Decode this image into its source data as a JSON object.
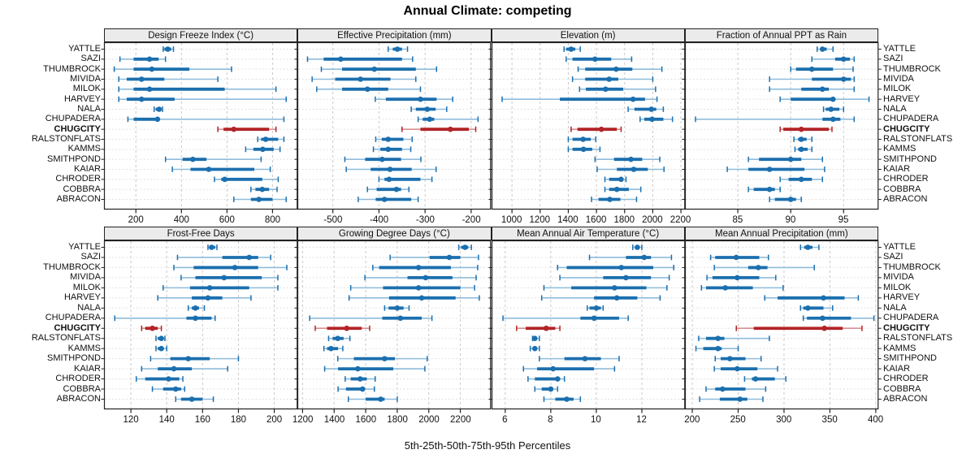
{
  "title": "Annual Climate: competing",
  "footer": "5th-25th-50th-75th-95th Percentiles",
  "highlight_site": "CHUGCITY",
  "sites": [
    "YATTLE",
    "SAZI",
    "THUMBROCK",
    "MIVIDA",
    "MILOK",
    "HARVEY",
    "NALA",
    "CHUPADERA",
    "CHUGCITY",
    "RALSTONFLATS",
    "KAMMS",
    "SMITHPOND",
    "KAIAR",
    "CHRODER",
    "COBBRA",
    "ABRACON"
  ],
  "colors": {
    "blue": "#1b6fae",
    "blue_light": "#8fbcdb",
    "red": "#b22427",
    "red_light": "#d98f91",
    "strip_bg": "#ebebeb",
    "panel_border": "#222222",
    "grid_dash": "#c9c9c9",
    "grid_dot": "#d9d9d9"
  },
  "chart_data": {
    "type": "dotplot",
    "description": "Trellis dot plot of five-number summaries (5th, 25th, 50th, 75th, 95th percentiles) of annual climate variables for 16 sites; CHUGCITY highlighted in red.",
    "percentiles": [
      "5th",
      "25th",
      "50th",
      "75th",
      "95th"
    ],
    "legend_position": "none",
    "grid": true,
    "panels": [
      {
        "title": "Design Freeze Index (°C)",
        "grid_row": 0,
        "grid_col": 0,
        "xlim": [
          60,
          910
        ],
        "ticks": [
          200,
          400,
          600,
          800
        ],
        "values": {
          "YATTLE": [
            320,
            325,
            340,
            355,
            365
          ],
          "SAZI": [
            130,
            190,
            260,
            300,
            330
          ],
          "THUMBROCK": [
            105,
            190,
            270,
            435,
            620
          ],
          "MIVIDA": [
            125,
            160,
            225,
            325,
            560
          ],
          "MILOK": [
            125,
            190,
            260,
            590,
            815
          ],
          "HARVEY": [
            125,
            160,
            225,
            370,
            860
          ],
          "NALA": [
            280,
            287,
            302,
            311,
            317
          ],
          "CHUPADERA": [
            165,
            190,
            295,
            300,
            850
          ],
          "CHUGCITY": [
            560,
            585,
            630,
            785,
            815
          ],
          "RALSTONFLATS": [
            735,
            750,
            770,
            825,
            850
          ],
          "KAMMS": [
            682,
            716,
            757,
            805,
            833
          ],
          "SMITHPOND": [
            330,
            405,
            450,
            510,
            750
          ],
          "KAIAR": [
            360,
            440,
            520,
            720,
            790
          ],
          "CHRODER": [
            545,
            575,
            590,
            755,
            825
          ],
          "COBBRA": [
            705,
            725,
            755,
            785,
            820
          ],
          "ABRACON": [
            630,
            705,
            740,
            800,
            860
          ]
        }
      },
      {
        "title": "Effective Precipitation (mm)",
        "grid_row": 0,
        "grid_col": 1,
        "xlim": [
          -577,
          -157
        ],
        "ticks": [
          -500,
          -400,
          -300,
          -200
        ],
        "values": {
          "YATTLE": [
            -380,
            -370,
            -360,
            -350,
            -338
          ],
          "SAZI": [
            -555,
            -520,
            -483,
            -350,
            -327
          ],
          "THUMBROCK": [
            -525,
            -480,
            -410,
            -320,
            -275
          ],
          "MIVIDA": [
            -545,
            -495,
            -440,
            -375,
            -320
          ],
          "MILOK": [
            -535,
            -480,
            -425,
            -380,
            -310
          ],
          "HARVEY": [
            -408,
            -385,
            -310,
            -275,
            -240
          ],
          "NALA": [
            -330,
            -320,
            -295,
            -277,
            -253
          ],
          "CHUPADERA": [
            -315,
            -305,
            -290,
            -280,
            -185
          ],
          "CHUGCITY": [
            -350,
            -310,
            -245,
            -205,
            -190
          ],
          "RALSTONFLATS": [
            -407,
            -394,
            -380,
            -347,
            -328
          ],
          "KAMMS": [
            -412,
            -397,
            -380,
            -350,
            -331
          ],
          "SMITHPOND": [
            -474,
            -430,
            -393,
            -352,
            -309
          ],
          "KAIAR": [
            -471,
            -418,
            -376,
            -329,
            -276
          ],
          "CHRODER": [
            -400,
            -388,
            -378,
            -310,
            -285
          ],
          "COBBRA": [
            -425,
            -405,
            -362,
            -352,
            -335
          ],
          "ABRACON": [
            -445,
            -407,
            -388,
            -330,
            -315
          ]
        }
      },
      {
        "title": "Elevation (m)",
        "grid_row": 0,
        "grid_col": 2,
        "xlim": [
          855,
          2230
        ],
        "ticks": [
          1000,
          1200,
          1400,
          1600,
          1800,
          2000,
          2200
        ],
        "values": {
          "YATTLE": [
            1370,
            1385,
            1420,
            1450,
            1485
          ],
          "SAZI": [
            1385,
            1430,
            1590,
            1705,
            1850
          ],
          "THUMBROCK": [
            1470,
            1520,
            1740,
            1855,
            2065
          ],
          "MIVIDA": [
            1430,
            1520,
            1690,
            1755,
            2000
          ],
          "MILOK": [
            1480,
            1525,
            1665,
            1790,
            2020
          ],
          "HARVEY": [
            930,
            1340,
            1860,
            1945,
            2030
          ],
          "NALA": [
            1825,
            1870,
            1990,
            2025,
            2075
          ],
          "CHUPADERA": [
            1910,
            1940,
            1995,
            2075,
            2140
          ],
          "CHUGCITY": [
            1420,
            1465,
            1635,
            1745,
            1775
          ],
          "RALSTONFLATS": [
            1400,
            1430,
            1505,
            1560,
            1595
          ],
          "KAMMS": [
            1400,
            1430,
            1508,
            1570,
            1625
          ],
          "SMITHPOND": [
            1590,
            1725,
            1845,
            1925,
            2050
          ],
          "KAIAR": [
            1605,
            1745,
            1865,
            1965,
            2080
          ],
          "CHRODER": [
            1660,
            1690,
            1775,
            1790,
            1810
          ],
          "COBBRA": [
            1660,
            1690,
            1745,
            1830,
            1915
          ],
          "ABRACON": [
            1565,
            1615,
            1695,
            1770,
            1885
          ]
        }
      },
      {
        "title": "Fraction of Annual PPT as Rain",
        "grid_row": 0,
        "grid_col": 3,
        "xlim": [
          80,
          98.3
        ],
        "ticks": [
          85,
          90,
          95
        ],
        "values": {
          "YATTLE": [
            92.5,
            92.8,
            93,
            93.4,
            94
          ],
          "SAZI": [
            92,
            94.2,
            95,
            95.6,
            96
          ],
          "THUMBROCK": [
            90,
            90.5,
            92,
            94,
            95.9
          ],
          "MIVIDA": [
            88,
            92,
            95,
            95.7,
            96
          ],
          "MILOK": [
            88,
            91,
            93,
            93.6,
            96
          ],
          "HARVEY": [
            89,
            90,
            94,
            94.2,
            97.4
          ],
          "NALA": [
            93.1,
            93.3,
            93.8,
            94.6,
            95
          ],
          "CHUPADERA": [
            81,
            93,
            94,
            94.7,
            96
          ],
          "CHUGCITY": [
            89,
            89.3,
            91,
            93.6,
            93.9
          ],
          "RALSTONFLATS": [
            90.3,
            90.7,
            91,
            91.5,
            92
          ],
          "KAMMS": [
            90.4,
            90.7,
            91,
            91.6,
            92
          ],
          "SMITHPOND": [
            86,
            87,
            90,
            91,
            93
          ],
          "KAIAR": [
            84,
            86,
            88,
            91.3,
            93.2
          ],
          "CHRODER": [
            89,
            89.8,
            91,
            92,
            93
          ],
          "COBBRA": [
            86,
            86.5,
            88,
            88.5,
            89
          ],
          "ABRACON": [
            88,
            88.5,
            90,
            90.5,
            91
          ]
        }
      },
      {
        "title": "Frost-Free Days",
        "grid_row": 1,
        "grid_col": 0,
        "xlim": [
          105,
          213
        ],
        "ticks": [
          120,
          140,
          160,
          180,
          200
        ],
        "values": {
          "YATTLE": [
            163,
            164,
            165,
            167,
            168
          ],
          "SAZI": [
            146,
            171,
            186,
            191,
            198
          ],
          "THUMBROCK": [
            144,
            155,
            178,
            191,
            207
          ],
          "MIVIDA": [
            148,
            156,
            172,
            193,
            202
          ],
          "MILOK": [
            138,
            153,
            164,
            186,
            202
          ],
          "HARVEY": [
            135,
            154,
            163,
            171,
            187
          ],
          "NALA": [
            152,
            154,
            156,
            158,
            161
          ],
          "CHUPADERA": [
            111,
            151,
            156,
            165,
            167
          ],
          "CHUGCITY": [
            126,
            128,
            132,
            135,
            137
          ],
          "RALSTONFLATS": [
            134,
            135,
            137,
            138,
            139
          ],
          "KAMMS": [
            134,
            135,
            137,
            138,
            140
          ],
          "SMITHPOND": [
            131,
            142,
            152,
            164,
            180
          ],
          "KAIAR": [
            126,
            135,
            144,
            154,
            174
          ],
          "CHRODER": [
            123,
            128,
            141,
            147,
            149
          ],
          "COBBRA": [
            132,
            138,
            145,
            148,
            150
          ],
          "ABRACON": [
            145,
            148,
            154,
            160,
            166
          ]
        }
      },
      {
        "title": "Growing Degree Days (°C)",
        "grid_row": 1,
        "grid_col": 1,
        "xlim": [
          1167,
          2394
        ],
        "ticks": [
          1200,
          1400,
          1600,
          1800,
          2000,
          2200
        ],
        "values": {
          "YATTLE": [
            2190,
            2205,
            2230,
            2250,
            2270
          ],
          "SAZI": [
            1755,
            2005,
            2130,
            2200,
            2315
          ],
          "THUMBROCK": [
            1645,
            1685,
            1935,
            2140,
            2310
          ],
          "MIVIDA": [
            1595,
            1865,
            1980,
            2150,
            2300
          ],
          "MILOK": [
            1505,
            1710,
            1935,
            2200,
            2290
          ],
          "HARVEY": [
            1495,
            1748,
            1955,
            2170,
            2320
          ],
          "NALA": [
            1720,
            1745,
            1800,
            1840,
            1875
          ],
          "CHUPADERA": [
            1245,
            1705,
            1820,
            1955,
            2020
          ],
          "CHUGCITY": [
            1280,
            1355,
            1480,
            1575,
            1625
          ],
          "RALSTONFLATS": [
            1365,
            1390,
            1423,
            1460,
            1500
          ],
          "KAMMS": [
            1335,
            1355,
            1380,
            1425,
            1455
          ],
          "SMITHPOND": [
            1423,
            1525,
            1720,
            1785,
            1990
          ],
          "KAIAR": [
            1340,
            1425,
            1550,
            1775,
            1975
          ],
          "CHRODER": [
            1470,
            1505,
            1565,
            1607,
            1660
          ],
          "COBBRA": [
            1425,
            1475,
            1580,
            1595,
            1655
          ],
          "ABRACON": [
            1490,
            1600,
            1695,
            1720,
            1800
          ]
        }
      },
      {
        "title": "Mean Annual Air Temperature (°C)",
        "grid_row": 1,
        "grid_col": 2,
        "xlim": [
          5.4,
          13.9
        ],
        "ticks": [
          6,
          8,
          10,
          12
        ],
        "values": {
          "YATTLE": [
            11.6,
            11.7,
            11.8,
            11.9,
            12.0
          ],
          "SAZI": [
            9.7,
            11.3,
            12.1,
            12.4,
            13.3
          ],
          "THUMBROCK": [
            8.3,
            8.7,
            11.1,
            12.5,
            13.4
          ],
          "MIVIDA": [
            8.4,
            10.3,
            11.3,
            12.4,
            13.2
          ],
          "MILOK": [
            7.7,
            8.9,
            10.8,
            12.2,
            13.1
          ],
          "HARVEY": [
            7.6,
            9.9,
            10.9,
            11.8,
            12.8
          ],
          "NALA": [
            9.6,
            9.7,
            10.0,
            10.2,
            10.3
          ],
          "CHUPADERA": [
            5.9,
            9.3,
            9.9,
            11.0,
            11.4
          ],
          "CHUGCITY": [
            6.5,
            6.9,
            7.8,
            8.2,
            8.4
          ],
          "RALSTONFLATS": [
            7.2,
            7.2,
            7.3,
            7.4,
            7.5
          ],
          "KAMMS": [
            7.1,
            7.2,
            7.3,
            7.4,
            7.5
          ],
          "SMITHPOND": [
            7.5,
            8.6,
            9.5,
            10.2,
            11.0
          ],
          "KAIAR": [
            6.8,
            7.4,
            8.1,
            9.9,
            10.8
          ],
          "CHRODER": [
            7.0,
            7.3,
            8.3,
            8.4,
            8.6
          ],
          "COBBRA": [
            7.3,
            7.6,
            8.0,
            8.1,
            8.3
          ],
          "ABRACON": [
            7.7,
            8.2,
            8.7,
            9.0,
            9.3
          ]
        }
      },
      {
        "title": "Mean Annual Precipitation (mm)",
        "grid_row": 1,
        "grid_col": 3,
        "xlim": [
          192,
          403
        ],
        "ticks": [
          200,
          250,
          300,
          350,
          400
        ],
        "values": {
          "YATTLE": [
            318,
            322,
            326,
            331,
            338
          ],
          "SAZI": [
            220,
            225,
            248,
            273,
            283
          ],
          "THUMBROCK": [
            224,
            261,
            272,
            282,
            333
          ],
          "MIVIDA": [
            216,
            222,
            249,
            273,
            291
          ],
          "MILOK": [
            210,
            215,
            236,
            266,
            299
          ],
          "HARVEY": [
            279,
            293,
            343,
            366,
            381
          ],
          "NALA": [
            318,
            321,
            326,
            343,
            353
          ],
          "CHUPADERA": [
            321,
            325,
            342,
            373,
            398
          ],
          "CHUGCITY": [
            248,
            267,
            344,
            364,
            385
          ],
          "RALSTONFLATS": [
            207,
            215,
            228,
            235,
            284
          ],
          "KAMMS": [
            204,
            212,
            228,
            232,
            250
          ],
          "SMITHPOND": [
            225,
            231,
            241,
            258,
            275
          ],
          "KAIAR": [
            224,
            231,
            249,
            271,
            293
          ],
          "CHRODER": [
            257,
            265,
            269,
            290,
            302
          ],
          "COBBRA": [
            215,
            225,
            233,
            258,
            280
          ],
          "ABRACON": [
            208,
            230,
            252,
            260,
            277
          ]
        }
      }
    ]
  }
}
